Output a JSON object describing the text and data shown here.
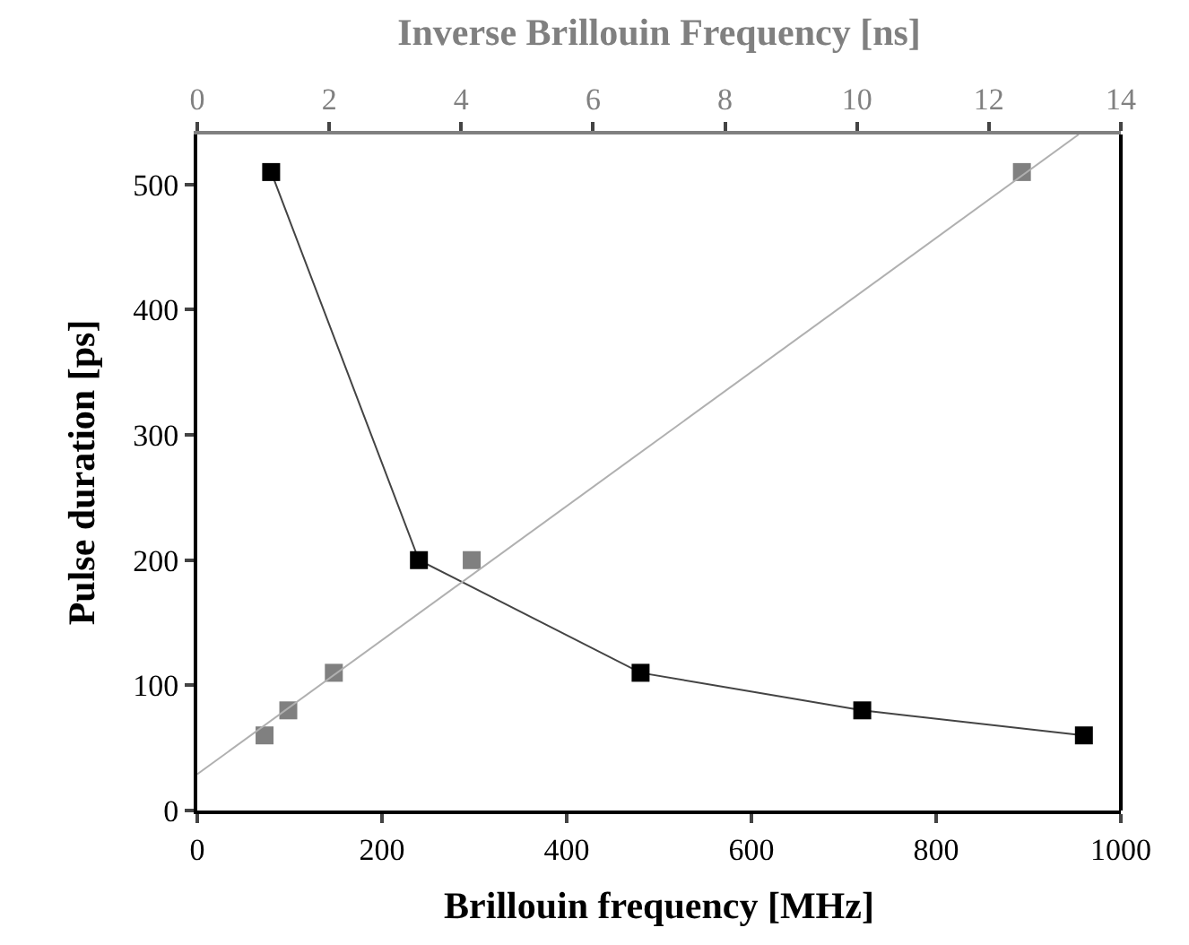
{
  "chart_data": {
    "type": "line",
    "xlabel": "Brillouin frequency [MHz]",
    "ylabel": "Pulse duration [ps]",
    "x2label": "Inverse Brillouin Frequency [ns]",
    "xlim": [
      0,
      1000
    ],
    "xticks": [
      0,
      200,
      400,
      600,
      800,
      1000
    ],
    "x2lim": [
      0,
      14
    ],
    "x2ticks": [
      0,
      2,
      4,
      6,
      8,
      10,
      12,
      14
    ],
    "ylim": [
      0,
      540
    ],
    "yticks": [
      0,
      100,
      200,
      300,
      400,
      500
    ],
    "marker": "square",
    "series": [
      {
        "color": "#000000",
        "x": [
          80,
          240,
          480,
          720,
          960
        ],
        "values": [
          510,
          200,
          110,
          80,
          60
        ]
      },
      {
        "type": "scatter",
        "axis": "x2",
        "color": "#808080",
        "x": [
          12.5,
          4.16,
          2.07,
          1.38,
          1.02
        ],
        "values": [
          510,
          200,
          110,
          80,
          60
        ]
      },
      {
        "type": "line",
        "axis": "x2",
        "marker": "none",
        "color": "#b0b0b0",
        "x": [
          0,
          13.36
        ],
        "values": [
          29,
          540
        ]
      }
    ]
  }
}
